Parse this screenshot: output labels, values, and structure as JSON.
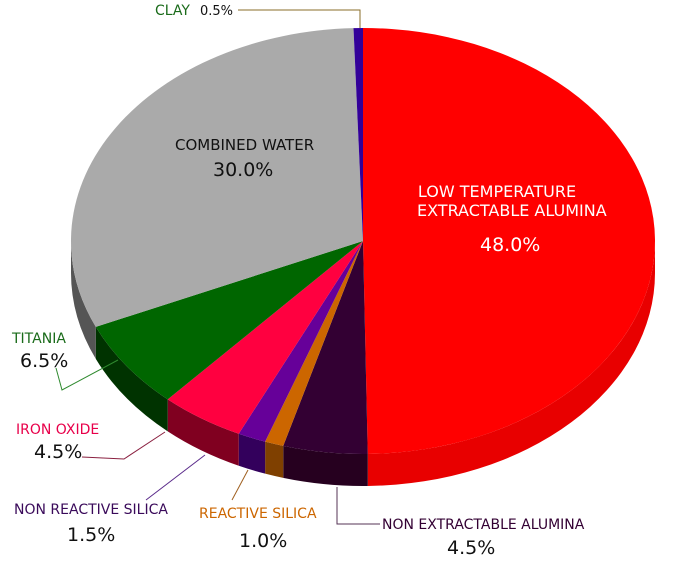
{
  "chart_data": {
    "type": "pie",
    "style": "3d",
    "start": "top",
    "direction": "clockwise",
    "slices": [
      {
        "label": "LOW TEMPERATURE EXTRACTABLE ALUMINA",
        "line1": "LOW TEMPERATURE",
        "line2": "EXTRACTABLE ALUMINA",
        "value": 48.0,
        "pct": "48.0%",
        "color": "#FF0000",
        "side": "#E80000",
        "label_color": "#FFFFFF"
      },
      {
        "label": "NON EXTRACTABLE ALUMINA",
        "value": 4.5,
        "pct": "4.5%",
        "color": "#330033",
        "side": "#26001F",
        "label_color": "#330033"
      },
      {
        "label": "REACTIVE SILICA",
        "value": 1.0,
        "pct": "1.0%",
        "color": "#CC6600",
        "side": "#7F4000",
        "label_color": "#CC6600"
      },
      {
        "label": "NON REACTIVE SILICA",
        "value": 1.5,
        "pct": "1.5%",
        "color": "#660099",
        "side": "#33005C",
        "label_color": "#3A0A5A"
      },
      {
        "label": "IRON OXIDE",
        "value": 4.5,
        "pct": "4.5%",
        "color": "#FF0040",
        "side": "#800020",
        "label_color": "#E8004A"
      },
      {
        "label": "TITANIA",
        "value": 6.5,
        "pct": "6.5%",
        "color": "#006600",
        "side": "#003300",
        "label_color": "#1A6B1A"
      },
      {
        "label": "COMBINED WATER",
        "value": 30.0,
        "pct": "30.0%",
        "color": "#AAAAAA",
        "side": "#555555",
        "label_color": "#111111"
      },
      {
        "label": "CLAY",
        "value": 0.5,
        "pct": "0.5%",
        "color": "#330099",
        "side": "#1A004D",
        "label_color": "#1A6B1A"
      }
    ]
  }
}
